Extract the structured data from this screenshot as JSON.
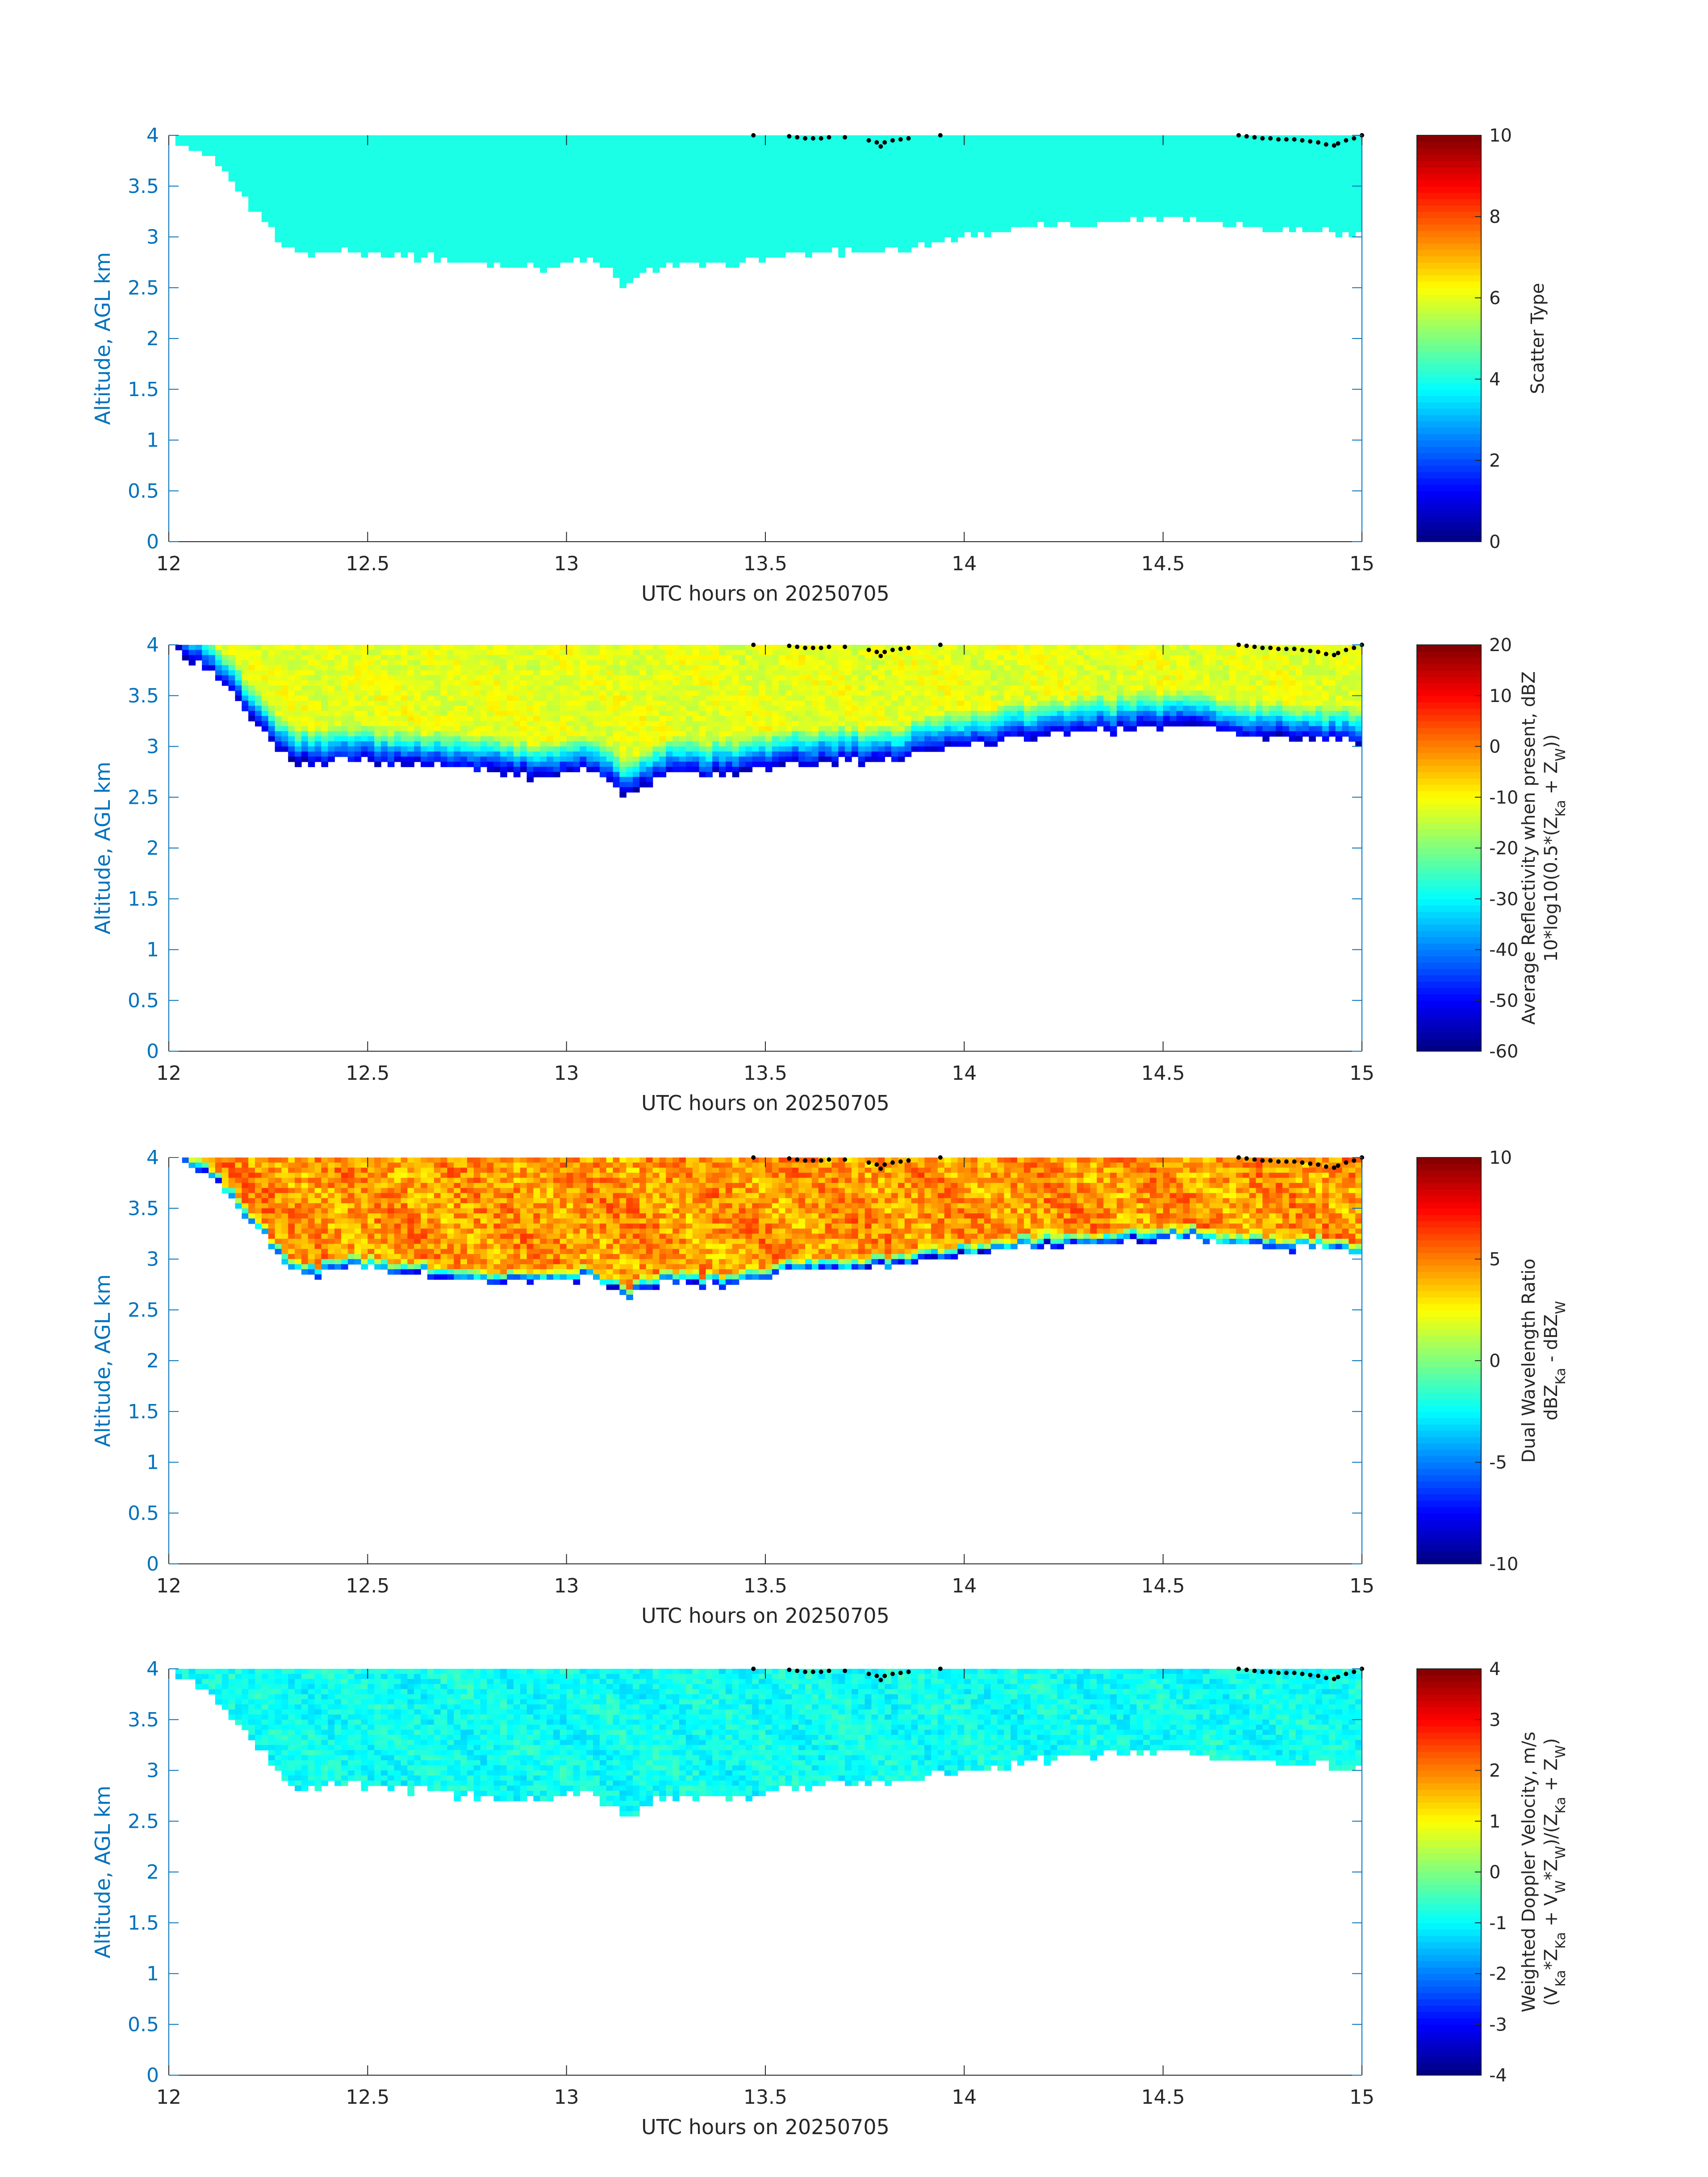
{
  "chart_data": [
    {
      "type": "heatmap",
      "xlabel": "UTC hours on 20250705",
      "ylabel": "Altitude, AGL km",
      "xlim": [
        12,
        15
      ],
      "ylim": [
        0,
        4
      ],
      "xticks": [
        "12",
        "12.5",
        "13",
        "13.5",
        "14",
        "14.5",
        "15"
      ],
      "yticks": [
        "0",
        "0.5",
        "1",
        "1.5",
        "2",
        "2.5",
        "3",
        "3.5",
        "4"
      ],
      "colorbar": {
        "label": "Scatter Type",
        "label_lines": [
          "Scatter Type"
        ],
        "clim": [
          0,
          10
        ],
        "ticks": [
          "0",
          "2",
          "4",
          "6",
          "8",
          "10"
        ]
      },
      "value_profile": {
        "constant": 4
      },
      "cloud_base_km": {
        "t": [
          12.0,
          12.05,
          12.1,
          12.15,
          12.2,
          12.25,
          12.3,
          12.35,
          12.45,
          12.55,
          12.65,
          12.75,
          12.85,
          12.95,
          13.05,
          13.1,
          13.15,
          13.2,
          13.25,
          13.35,
          13.45,
          13.55,
          13.65,
          13.75,
          13.85,
          13.95,
          14.05,
          14.15,
          14.25,
          14.35,
          14.45,
          14.55,
          14.65,
          14.75,
          14.85,
          14.95,
          15.0
        ],
        "z": [
          4.0,
          3.85,
          3.75,
          3.55,
          3.3,
          3.1,
          2.85,
          2.8,
          2.85,
          2.8,
          2.78,
          2.72,
          2.7,
          2.68,
          2.75,
          2.65,
          2.5,
          2.62,
          2.72,
          2.7,
          2.72,
          2.8,
          2.82,
          2.84,
          2.86,
          2.95,
          3.0,
          3.05,
          3.1,
          3.12,
          3.15,
          3.18,
          3.1,
          3.08,
          3.05,
          3.02,
          3.0
        ]
      }
    },
    {
      "type": "heatmap",
      "xlabel": "UTC hours on 20250705",
      "ylabel": "Altitude, AGL km",
      "xlim": [
        12,
        15
      ],
      "ylim": [
        0,
        4
      ],
      "xticks": [
        "12",
        "12.5",
        "13",
        "13.5",
        "14",
        "14.5",
        "15"
      ],
      "yticks": [
        "0",
        "0.5",
        "1",
        "1.5",
        "2",
        "2.5",
        "3",
        "3.5",
        "4"
      ],
      "colorbar": {
        "label": "Average Reflectivity when present, dBZ 10*log10(0.5*(Z_Ka + Z_W))",
        "label_lines": [
          "Average Reflectivity when present, dBZ",
          "10*log10(0.5*(Z",
          "Ka",
          " + Z",
          "W",
          "))"
        ],
        "clim": [
          -60,
          20
        ],
        "ticks": [
          "-60",
          "-50",
          "-40",
          "-30",
          "-20",
          "-10",
          "0",
          "10",
          "20"
        ]
      },
      "value_profile": {
        "base_value": -55,
        "top_value": -12,
        "transition_km": 0.35,
        "noise": 3
      },
      "cloud_base_km": {
        "t": [
          12.0,
          12.05,
          12.1,
          12.15,
          12.2,
          12.25,
          12.3,
          12.35,
          12.45,
          12.55,
          12.65,
          12.75,
          12.85,
          12.95,
          13.05,
          13.1,
          13.15,
          13.2,
          13.25,
          13.35,
          13.45,
          13.55,
          13.65,
          13.75,
          13.85,
          13.95,
          14.05,
          14.15,
          14.25,
          14.35,
          14.45,
          14.55,
          14.65,
          14.75,
          14.85,
          14.95,
          15.0
        ],
        "z": [
          4.0,
          3.85,
          3.75,
          3.55,
          3.3,
          3.1,
          2.85,
          2.8,
          2.85,
          2.8,
          2.78,
          2.72,
          2.7,
          2.68,
          2.75,
          2.65,
          2.5,
          2.62,
          2.72,
          2.7,
          2.72,
          2.8,
          2.82,
          2.84,
          2.86,
          2.95,
          3.0,
          3.05,
          3.1,
          3.12,
          3.15,
          3.18,
          3.1,
          3.08,
          3.05,
          3.02,
          3.0
        ]
      }
    },
    {
      "type": "heatmap",
      "xlabel": "UTC hours on 20250705",
      "ylabel": "Altitude, AGL km",
      "xlim": [
        12,
        15
      ],
      "ylim": [
        0,
        4
      ],
      "xticks": [
        "12",
        "12.5",
        "13",
        "13.5",
        "14",
        "14.5",
        "15"
      ],
      "yticks": [
        "0",
        "0.5",
        "1",
        "1.5",
        "2",
        "2.5",
        "3",
        "3.5",
        "4"
      ],
      "colorbar": {
        "label": "Dual Wavelength Ratio dBZ_Ka - dBZ_W",
        "label_lines": [
          "Dual Wavelength Ratio",
          "dBZ",
          "Ka",
          " - dBZ",
          "W",
          ""
        ],
        "clim": [
          -10,
          10
        ],
        "ticks": [
          "-10",
          "-5",
          "0",
          "5",
          "10"
        ]
      },
      "value_profile": {
        "base_value": -8,
        "top_value": 4.5,
        "transition_km": 0.12,
        "noise": 1.6
      },
      "cloud_base_km": {
        "t": [
          12.0,
          12.05,
          12.1,
          12.15,
          12.2,
          12.25,
          12.3,
          12.35,
          12.45,
          12.55,
          12.65,
          12.75,
          12.85,
          12.95,
          13.05,
          13.1,
          13.15,
          13.2,
          13.25,
          13.35,
          13.45,
          13.55,
          13.65,
          13.75,
          13.85,
          13.95,
          14.05,
          14.15,
          14.25,
          14.35,
          14.45,
          14.55,
          14.65,
          14.75,
          14.85,
          14.95,
          15.0
        ],
        "z": [
          4.0,
          3.9,
          3.8,
          3.6,
          3.35,
          3.15,
          2.85,
          2.8,
          2.9,
          2.85,
          2.82,
          2.78,
          2.75,
          2.74,
          2.8,
          2.72,
          2.6,
          2.68,
          2.75,
          2.72,
          2.75,
          2.85,
          2.88,
          2.9,
          2.92,
          3.0,
          3.04,
          3.08,
          3.12,
          3.14,
          3.17,
          3.2,
          3.12,
          3.1,
          3.08,
          3.05,
          3.02
        ]
      }
    },
    {
      "type": "heatmap",
      "xlabel": "UTC hours on 20250705",
      "ylabel": "Altitude, AGL km",
      "xlim": [
        12,
        15
      ],
      "ylim": [
        0,
        4
      ],
      "xticks": [
        "12",
        "12.5",
        "13",
        "13.5",
        "14",
        "14.5",
        "15"
      ],
      "yticks": [
        "0",
        "0.5",
        "1",
        "1.5",
        "2",
        "2.5",
        "3",
        "3.5",
        "4"
      ],
      "colorbar": {
        "label": "Weighted Doppler Velocity, m/s (V_Ka*Z_Ka + V_W*Z_W)/(Z_Ka + Z_W)",
        "label_lines": [
          "Weighted Doppler Velocity, m/s",
          "(V",
          "Ka",
          "*Z",
          "Ka",
          " + V",
          "W",
          "*Z",
          "W",
          ")/(Z",
          "Ka",
          " + Z",
          "W",
          ")"
        ],
        "clim": [
          -4,
          4
        ],
        "ticks": [
          "-4",
          "-3",
          "-2",
          "-1",
          "0",
          "1",
          "2",
          "3",
          "4"
        ]
      },
      "value_profile": {
        "base_value": -0.9,
        "top_value": -0.9,
        "transition_km": 0.2,
        "noise": 0.35
      },
      "cloud_base_km": {
        "t": [
          12.0,
          12.05,
          12.1,
          12.15,
          12.2,
          12.25,
          12.3,
          12.35,
          12.45,
          12.55,
          12.65,
          12.75,
          12.85,
          12.95,
          13.05,
          13.1,
          13.15,
          13.2,
          13.25,
          13.35,
          13.45,
          13.55,
          13.65,
          13.75,
          13.85,
          13.95,
          14.05,
          14.15,
          14.25,
          14.35,
          14.45,
          14.55,
          14.65,
          14.75,
          14.85,
          14.95,
          15.0
        ],
        "z": [
          4.0,
          3.85,
          3.75,
          3.55,
          3.3,
          3.1,
          2.85,
          2.8,
          2.85,
          2.8,
          2.78,
          2.72,
          2.7,
          2.68,
          2.75,
          2.65,
          2.5,
          2.62,
          2.72,
          2.7,
          2.72,
          2.8,
          2.82,
          2.84,
          2.86,
          2.95,
          3.0,
          3.05,
          3.1,
          3.12,
          3.15,
          3.18,
          3.1,
          3.08,
          3.05,
          3.02,
          3.0
        ]
      }
    }
  ],
  "cloud_top_dots": {
    "t": [
      13.47,
      13.56,
      13.58,
      13.6,
      13.62,
      13.64,
      13.66,
      13.7,
      13.76,
      13.78,
      13.79,
      13.8,
      13.82,
      13.84,
      13.86,
      13.94,
      14.69,
      14.71,
      14.73,
      14.75,
      14.77,
      14.79,
      14.81,
      14.83,
      14.85,
      14.87,
      14.89,
      14.91,
      14.93,
      14.94,
      14.96,
      14.98,
      15.0
    ],
    "z": [
      4.0,
      3.99,
      3.98,
      3.97,
      3.97,
      3.97,
      3.98,
      3.98,
      3.95,
      3.93,
      3.89,
      3.93,
      3.95,
      3.96,
      3.97,
      4.0,
      4.0,
      3.99,
      3.98,
      3.97,
      3.97,
      3.96,
      3.96,
      3.96,
      3.95,
      3.94,
      3.93,
      3.91,
      3.9,
      3.92,
      3.95,
      3.97,
      4.0
    ]
  }
}
